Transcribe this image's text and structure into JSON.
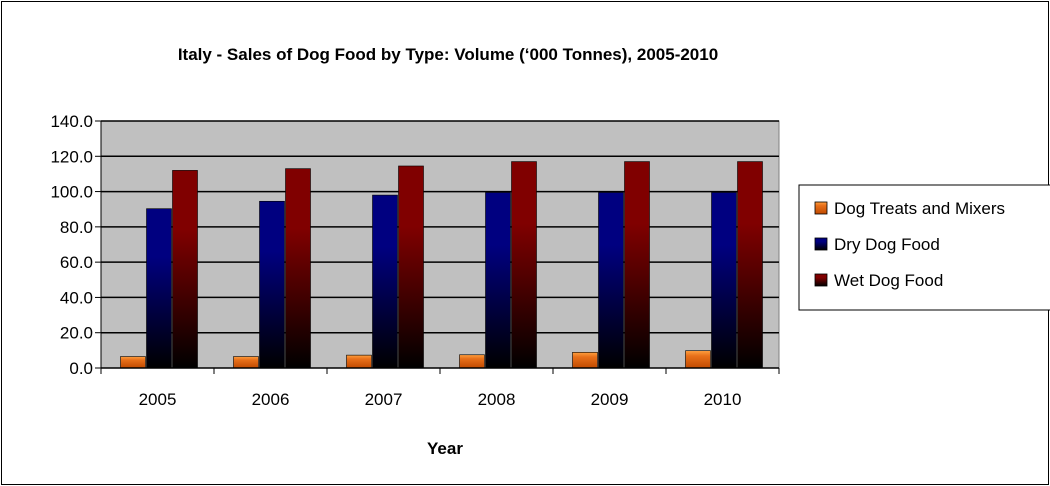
{
  "chart_data": {
    "type": "bar",
    "title": "Italy - Sales of Dog Food by Type: Volume (‘000 Tonnes), 2005-2010",
    "xlabel": "Year",
    "ylabel": "",
    "categories": [
      "2005",
      "2006",
      "2007",
      "2008",
      "2009",
      "2010"
    ],
    "ylim": [
      0,
      140
    ],
    "yticks": [
      "0.0",
      "20.0",
      "40.0",
      "60.0",
      "80.0",
      "100.0",
      "120.0",
      "140.0"
    ],
    "grid": true,
    "legend_position": "right",
    "series": [
      {
        "name": "Dog Treats and Mixers",
        "color": "#e8701a",
        "values": [
          6.5,
          6.5,
          7.3,
          7.5,
          8.9,
          9.8
        ]
      },
      {
        "name": "Dry Dog Food",
        "color": "#000080",
        "values": [
          90.3,
          94.5,
          98.0,
          99.5,
          99.5,
          99.5
        ]
      },
      {
        "name": "Wet Dog Food",
        "color": "#800000",
        "values": [
          112.0,
          113.0,
          114.5,
          117.0,
          117.0,
          117.0
        ]
      }
    ]
  }
}
